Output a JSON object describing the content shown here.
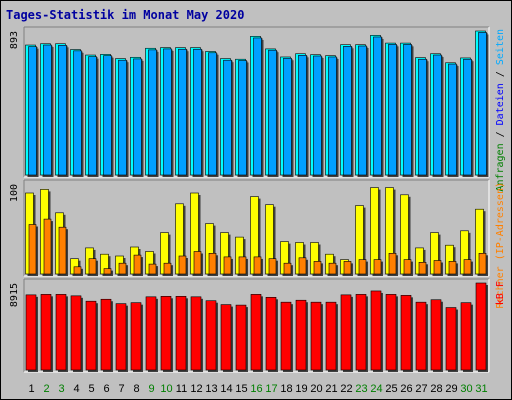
{
  "chart_data": {
    "type": "bar",
    "title": "Tages-Statistik im Monat May 2020",
    "categories": [
      "1",
      "2",
      "3",
      "4",
      "5",
      "6",
      "7",
      "8",
      "9",
      "10",
      "11",
      "12",
      "13",
      "14",
      "15",
      "16",
      "17",
      "18",
      "19",
      "20",
      "21",
      "22",
      "23",
      "24",
      "25",
      "26",
      "27",
      "28",
      "29",
      "30",
      "31"
    ],
    "weekend_categories": [
      "2",
      "3",
      "9",
      "10",
      "16",
      "17",
      "23",
      "24",
      "30",
      "31"
    ],
    "colors": {
      "title": "#0000a0",
      "frame": "#c0c0c0",
      "plot_bg": "#c0c0c0",
      "day_weekday": "#000000",
      "day_weekend": "#007f00",
      "anfragen": "#00ffff",
      "anfragen_edge": "#006080",
      "dateien": "#00a0ff",
      "seiten": "#ffff00",
      "rechner": "#ff8000",
      "kbf": "#ff0000",
      "shadow": "#404040"
    },
    "panels": [
      {
        "id": "hits",
        "axis_label": "893",
        "ylim": [
          0,
          893
        ],
        "side_labels": [
          {
            "text": "Anfragen",
            "color": "#007f00"
          },
          {
            "text": " / ",
            "color": "#000000"
          },
          {
            "text": "Dateien",
            "color": "#0000ff"
          },
          {
            "text": " / ",
            "color": "#000000"
          },
          {
            "text": "Seiten",
            "color": "#00aaff"
          }
        ],
        "series": [
          {
            "name": "Anfragen",
            "values": [
              806,
              814,
              814,
              778,
              744,
              748,
              722,
              730,
              786,
              790,
              790,
              790,
              766,
              722,
              718,
              860,
              782,
              732,
              752,
              746,
              740,
              808,
              808,
              866,
              818,
              818,
              728,
              752,
              696,
              726,
              893
            ]
          },
          {
            "name": "Dateien",
            "values": [
              796,
              806,
              804,
              770,
              734,
              740,
              712,
              720,
              776,
              782,
              780,
              780,
              758,
              712,
              710,
              850,
              774,
              724,
              742,
              738,
              732,
              798,
              800,
              856,
              810,
              810,
              718,
              744,
              688,
              718,
              884
            ]
          }
        ]
      },
      {
        "id": "pages",
        "axis_label": "100",
        "ylim": [
          0,
          100
        ],
        "side_labels": [
          {
            "text": "Rechner (IP-Adressen)",
            "color": "#ff8000"
          }
        ],
        "series": [
          {
            "name": "Seiten",
            "values": [
              90,
              94,
              68,
              17,
              29,
              22,
              20,
              30,
              25,
              46,
              78,
              90,
              56,
              46,
              41,
              86,
              77,
              36,
              35,
              35,
              22,
              16,
              76,
              96,
              96,
              88,
              29,
              46,
              32,
              48,
              72
            ]
          },
          {
            "name": "Rechner",
            "values": [
              55,
              61,
              52,
              8,
              17,
              6,
              12,
              21,
              11,
              12,
              20,
              25,
              23,
              19,
              19,
              19,
              17,
              12,
              18,
              14,
              12,
              14,
              16,
              16,
              23,
              16,
              13,
              15,
              14,
              16,
              23
            ]
          }
        ]
      },
      {
        "id": "kb",
        "axis_label": "8915",
        "ylim": [
          0,
          8915
        ],
        "side_labels": [
          {
            "text": "kB F",
            "color": "#ff0000"
          }
        ],
        "series": [
          {
            "name": "kB F",
            "values": [
              7700,
              7750,
              7750,
              7600,
              7050,
              7250,
              6800,
              6900,
              7500,
              7550,
              7550,
              7500,
              7100,
              6700,
              6650,
              7750,
              7450,
              6950,
              7150,
              6950,
              6950,
              7700,
              7750,
              8100,
              7750,
              7650,
              6950,
              7200,
              6400,
              6900,
              8915
            ]
          }
        ]
      }
    ]
  }
}
